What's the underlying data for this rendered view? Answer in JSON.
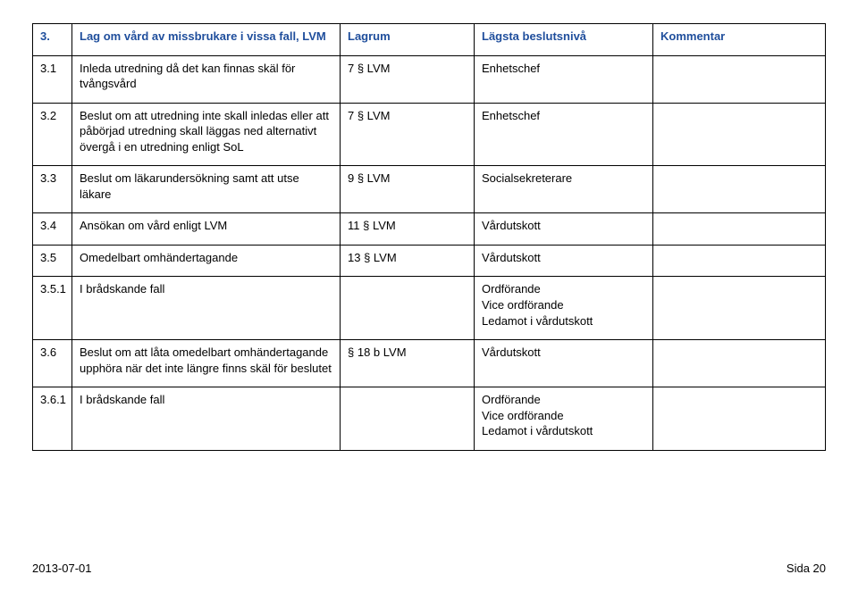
{
  "colors": {
    "heading": "#1f4e9c",
    "text": "#000000",
    "border": "#000000",
    "background": "#ffffff"
  },
  "columns": {
    "num": "",
    "text": "",
    "lagrum": "Lagrum",
    "lagsta": "Lägsta beslutsnivå",
    "kommentar": "Kommentar"
  },
  "header": {
    "num": "3.",
    "title": "Lag om vård av missbrukare i vissa fall, LVM"
  },
  "rows": [
    {
      "num": "3.1",
      "text": "Inleda utredning då det kan finnas skäl för tvångsvård",
      "lagrum": "7 § LVM",
      "niva": "Enhetschef",
      "kommentar": ""
    },
    {
      "num": "3.2",
      "text": "Beslut om att utredning inte skall inledas eller att påbörjad utredning skall läggas ned alternativt övergå i en utredning enligt SoL",
      "lagrum": "7 § LVM",
      "niva": "Enhetschef",
      "kommentar": ""
    },
    {
      "num": "3.3",
      "text": "Beslut om läkarundersökning samt att utse läkare",
      "lagrum": "9 § LVM",
      "niva": "Socialsekreterare",
      "kommentar": ""
    },
    {
      "num": "3.4",
      "text": "Ansökan om vård enligt LVM",
      "lagrum": "11 § LVM",
      "niva": "Vårdutskott",
      "kommentar": ""
    },
    {
      "num": "3.5",
      "text": "Omedelbart omhändertagande",
      "lagrum": "13 § LVM",
      "niva": "Vårdutskott",
      "kommentar": ""
    },
    {
      "num": "3.5.1",
      "text": "I brådskande fall",
      "lagrum": "",
      "niva": "Ordförande\nVice ordförande\nLedamot i vårdutskott",
      "kommentar": ""
    },
    {
      "num": "3.6",
      "text": "Beslut om att låta omedelbart omhändertagande upphöra när det inte längre finns skäl för beslutet",
      "lagrum": "§ 18 b LVM",
      "niva": "Vårdutskott",
      "kommentar": ""
    },
    {
      "num": "3.6.1",
      "text": "I brådskande fall",
      "lagrum": "",
      "niva": "Ordförande\nVice ordförande\nLedamot i vårdutskott",
      "kommentar": ""
    }
  ],
  "footer": {
    "left": "2013-07-01",
    "right": "Sida 20"
  }
}
